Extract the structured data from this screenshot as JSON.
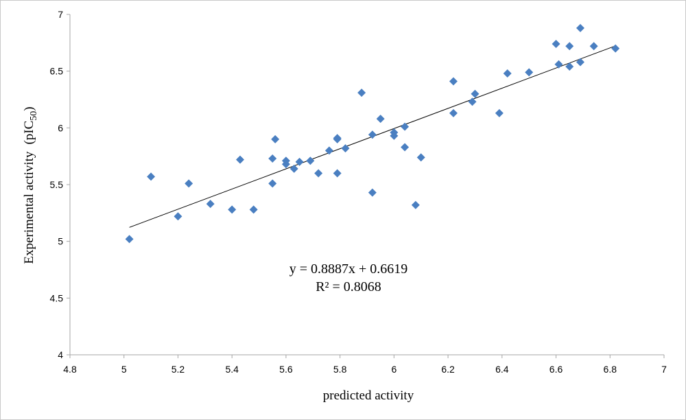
{
  "chart_data": {
    "type": "scatter",
    "xlabel": "predicted activity",
    "ylabel": {
      "main": "Experimental activity",
      "unit_prefix": "(pIC",
      "unit_sub": "50",
      "unit_suffix": ")"
    },
    "xlim": [
      4.8,
      7
    ],
    "ylim": [
      4,
      7
    ],
    "xticks": [
      "4.8",
      "5",
      "5.2",
      "5.4",
      "5.6",
      "5.8",
      "6",
      "6.2",
      "6.4",
      "6.6",
      "6.8",
      "7"
    ],
    "yticks": [
      "4",
      "4.5",
      "5",
      "5.5",
      "6",
      "6.5",
      "7"
    ],
    "grid": false,
    "marker": "diamond",
    "marker_color": "#4a7fc1",
    "trendline": {
      "slope": 0.8887,
      "intercept": 0.6619,
      "x_range": [
        5.02,
        6.82
      ],
      "color": "#000000"
    },
    "equation": "y = 0.8887x + 0.6619",
    "r_squared": "R² = 0.8068",
    "points": [
      [
        5.02,
        5.02
      ],
      [
        5.1,
        5.57
      ],
      [
        5.2,
        5.22
      ],
      [
        5.24,
        5.51
      ],
      [
        5.32,
        5.33
      ],
      [
        5.4,
        5.28
      ],
      [
        5.43,
        5.72
      ],
      [
        5.48,
        5.28
      ],
      [
        5.55,
        5.73
      ],
      [
        5.55,
        5.51
      ],
      [
        5.56,
        5.9
      ],
      [
        5.6,
        5.71
      ],
      [
        5.6,
        5.68
      ],
      [
        5.63,
        5.64
      ],
      [
        5.65,
        5.7
      ],
      [
        5.69,
        5.71
      ],
      [
        5.72,
        5.6
      ],
      [
        5.76,
        5.8
      ],
      [
        5.79,
        5.91
      ],
      [
        5.79,
        5.9
      ],
      [
        5.79,
        5.6
      ],
      [
        5.82,
        5.82
      ],
      [
        5.88,
        6.31
      ],
      [
        5.92,
        5.94
      ],
      [
        5.92,
        5.43
      ],
      [
        5.95,
        6.08
      ],
      [
        6.0,
        5.96
      ],
      [
        6.0,
        5.93
      ],
      [
        6.04,
        6.01
      ],
      [
        6.04,
        5.83
      ],
      [
        6.08,
        5.32
      ],
      [
        6.1,
        5.74
      ],
      [
        6.22,
        6.41
      ],
      [
        6.22,
        6.13
      ],
      [
        6.29,
        6.23
      ],
      [
        6.3,
        6.3
      ],
      [
        6.39,
        6.13
      ],
      [
        6.42,
        6.48
      ],
      [
        6.5,
        6.49
      ],
      [
        6.6,
        6.74
      ],
      [
        6.61,
        6.56
      ],
      [
        6.65,
        6.72
      ],
      [
        6.65,
        6.54
      ],
      [
        6.69,
        6.88
      ],
      [
        6.69,
        6.58
      ],
      [
        6.74,
        6.72
      ],
      [
        6.82,
        6.7
      ]
    ]
  }
}
